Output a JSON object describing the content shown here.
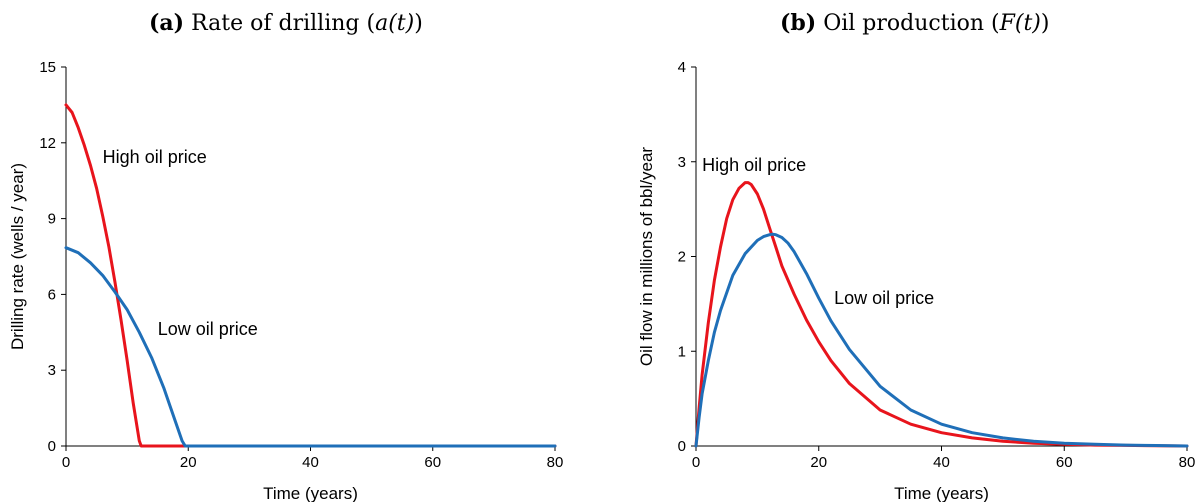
{
  "chart_data": [
    {
      "type": "line",
      "title_tag": "(a)",
      "title_text": "Rate of drilling (",
      "title_math": "a(t)",
      "title_close": ")",
      "xlabel": "Time (years)",
      "ylabel": "Drilling rate (wells / year)",
      "xlim": [
        0,
        80
      ],
      "ylim": [
        0,
        15
      ],
      "xticks": [
        0,
        20,
        40,
        60,
        80
      ],
      "yticks": [
        0,
        3,
        6,
        9,
        12,
        15
      ],
      "grid": false,
      "series": [
        {
          "name": "High oil price",
          "color": "#e8141c",
          "x": [
            0,
            1,
            2,
            3,
            4,
            5,
            6,
            7,
            8,
            9,
            10,
            11,
            12,
            12.3,
            14,
            20,
            30,
            40,
            50,
            60,
            70,
            80
          ],
          "y": [
            13.5,
            13.2,
            12.6,
            11.9,
            11.1,
            10.2,
            9.1,
            7.9,
            6.5,
            5.0,
            3.4,
            1.7,
            0.2,
            0,
            0,
            0,
            0,
            0,
            0,
            0,
            0,
            0
          ]
        },
        {
          "name": "Low oil price",
          "color": "#1f6fb8",
          "x": [
            0,
            2,
            4,
            6,
            8,
            10,
            12,
            14,
            16,
            17,
            18,
            19,
            19.5,
            20,
            30,
            40,
            50,
            60,
            70,
            80
          ],
          "y": [
            7.85,
            7.65,
            7.25,
            6.75,
            6.1,
            5.4,
            4.5,
            3.5,
            2.3,
            1.6,
            0.9,
            0.2,
            0,
            0,
            0,
            0,
            0,
            0,
            0,
            0
          ]
        }
      ],
      "annotations": [
        {
          "text": "High oil price",
          "x": 6,
          "y": 11.2
        },
        {
          "text": "Low oil price",
          "x": 15,
          "y": 4.4
        }
      ]
    },
    {
      "type": "line",
      "title_tag": "(b)",
      "title_text": "Oil production (",
      "title_math": "F(t)",
      "title_close": ")",
      "xlabel": "Time (years)",
      "ylabel": "Oil flow in millions of bbl/year",
      "xlim": [
        0,
        80
      ],
      "ylim": [
        0,
        4
      ],
      "xticks": [
        0,
        20,
        40,
        60,
        80
      ],
      "yticks": [
        0,
        1,
        2,
        3,
        4
      ],
      "grid": false,
      "series": [
        {
          "name": "High oil price",
          "color": "#e8141c",
          "x": [
            0,
            0.5,
            1,
            2,
            3,
            4,
            5,
            6,
            7,
            8,
            8.5,
            9,
            10,
            11,
            12,
            13,
            14,
            16,
            18,
            20,
            22,
            25,
            30,
            35,
            40,
            45,
            50,
            55,
            60,
            65,
            70,
            75,
            80
          ],
          "y": [
            0,
            0.4,
            0.75,
            1.3,
            1.75,
            2.1,
            2.4,
            2.6,
            2.72,
            2.78,
            2.78,
            2.76,
            2.66,
            2.5,
            2.3,
            2.1,
            1.9,
            1.6,
            1.33,
            1.1,
            0.9,
            0.66,
            0.38,
            0.23,
            0.14,
            0.085,
            0.05,
            0.03,
            0.018,
            0.01,
            0.006,
            0.003,
            0
          ]
        },
        {
          "name": "Low oil price",
          "color": "#1f6fb8",
          "x": [
            0,
            0.5,
            1,
            2,
            3,
            4,
            6,
            8,
            10,
            11,
            12,
            12.5,
            13,
            14,
            15,
            16,
            18,
            20,
            22,
            25,
            30,
            35,
            40,
            45,
            50,
            55,
            60,
            65,
            70,
            75,
            80
          ],
          "y": [
            0,
            0.3,
            0.55,
            0.9,
            1.2,
            1.43,
            1.8,
            2.03,
            2.17,
            2.21,
            2.23,
            2.235,
            2.23,
            2.2,
            2.14,
            2.05,
            1.82,
            1.56,
            1.32,
            1.02,
            0.63,
            0.38,
            0.23,
            0.14,
            0.085,
            0.05,
            0.03,
            0.018,
            0.01,
            0.005,
            0
          ]
        }
      ],
      "annotations": [
        {
          "text": "High oil price",
          "x": 1,
          "y": 2.9
        },
        {
          "text": "Low oil price",
          "x": 22.5,
          "y": 1.5
        }
      ]
    }
  ]
}
